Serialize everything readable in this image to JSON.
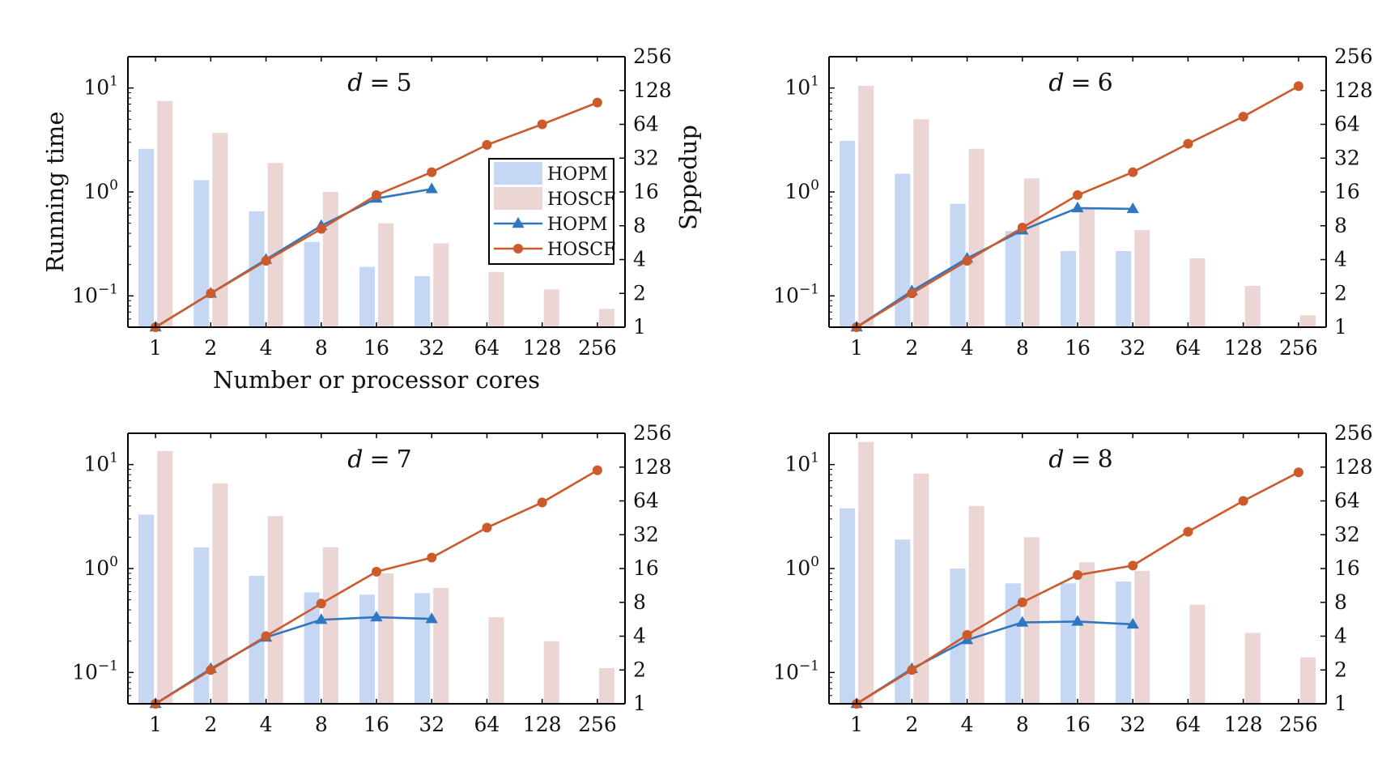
{
  "figure": {
    "ylabel_left": "Running time",
    "ylabel_right": "Sppedup",
    "xlabel": "Number or processor cores"
  },
  "legend": [
    {
      "label": "HOPM",
      "kind": "bar",
      "color": "#c5d7f2"
    },
    {
      "label": "HOSCF",
      "kind": "bar",
      "color": "#ecd5d5"
    },
    {
      "label": "HOPM",
      "kind": "line",
      "marker": "triangle",
      "color": "#2f77c1"
    },
    {
      "label": "HOSCF",
      "kind": "line",
      "marker": "circle",
      "color": "#cc5a2b"
    }
  ],
  "colors": {
    "hopm_bar": "#c5d7f2",
    "hoscf_bar": "#ecd5d5",
    "hopm_line": "#2f77c1",
    "hoscf_line": "#cc5a2b"
  },
  "chart_data": [
    {
      "type": "bar+line",
      "title_var": "d",
      "title_eq": "=",
      "title_num": "5",
      "categories": [
        "1",
        "2",
        "4",
        "8",
        "16",
        "32",
        "64",
        "128",
        "256"
      ],
      "left_axis": {
        "scale": "log10",
        "ylim": [
          0.05,
          20
        ],
        "ticks": [
          {
            "base": "10",
            "exp": "1",
            "value": 10
          },
          {
            "base": "10",
            "exp": "0",
            "value": 1
          },
          {
            "base": "10",
            "exp": "−1",
            "value": 0.1
          }
        ]
      },
      "right_axis": {
        "scale": "log2",
        "ylim": [
          1,
          256
        ],
        "ticks": [
          "1",
          "2",
          "4",
          "8",
          "16",
          "32",
          "64",
          "128",
          "256"
        ]
      },
      "series": [
        {
          "name": "HOPM",
          "kind": "bar",
          "axis": "left",
          "values": [
            2.6,
            1.3,
            0.65,
            0.33,
            0.19,
            0.155,
            null,
            null,
            null
          ]
        },
        {
          "name": "HOSCF",
          "kind": "bar",
          "axis": "left",
          "values": [
            7.5,
            3.7,
            1.9,
            1.0,
            0.5,
            0.32,
            0.17,
            0.115,
            0.075
          ]
        },
        {
          "name": "HOPM",
          "kind": "line",
          "axis": "right",
          "values": [
            1,
            2,
            4,
            8,
            14,
            17,
            null,
            null,
            null
          ]
        },
        {
          "name": "HOSCF",
          "kind": "line",
          "axis": "right",
          "values": [
            1,
            2,
            3.9,
            7.5,
            15,
            24,
            42,
            64,
            100
          ]
        }
      ],
      "show_legend": true,
      "show_xlabel": true,
      "show_ylabels": true
    },
    {
      "type": "bar+line",
      "title_var": "d",
      "title_eq": "=",
      "title_num": "6",
      "categories": [
        "1",
        "2",
        "4",
        "8",
        "16",
        "32",
        "64",
        "128",
        "256"
      ],
      "left_axis": {
        "scale": "log10",
        "ylim": [
          0.05,
          20
        ],
        "ticks": [
          {
            "base": "10",
            "exp": "1",
            "value": 10
          },
          {
            "base": "10",
            "exp": "0",
            "value": 1
          },
          {
            "base": "10",
            "exp": "−1",
            "value": 0.1
          }
        ]
      },
      "right_axis": {
        "scale": "log2",
        "ylim": [
          1,
          256
        ],
        "ticks": [
          "1",
          "2",
          "4",
          "8",
          "16",
          "32",
          "64",
          "128",
          "256"
        ]
      },
      "series": [
        {
          "name": "HOPM",
          "kind": "bar",
          "axis": "left",
          "values": [
            3.1,
            1.5,
            0.77,
            0.42,
            0.27,
            0.27,
            null,
            null,
            null
          ]
        },
        {
          "name": "HOSCF",
          "kind": "bar",
          "axis": "left",
          "values": [
            10.5,
            5.0,
            2.6,
            1.35,
            0.7,
            0.43,
            0.23,
            0.125,
            0.065
          ]
        },
        {
          "name": "HOPM",
          "kind": "line",
          "axis": "right",
          "values": [
            1,
            2.1,
            4.1,
            7.3,
            11.5,
            11.3,
            null,
            null,
            null
          ]
        },
        {
          "name": "HOSCF",
          "kind": "line",
          "axis": "right",
          "values": [
            1,
            2,
            3.9,
            7.7,
            15,
            24,
            43,
            75,
            140
          ]
        }
      ],
      "show_legend": false,
      "show_xlabel": false,
      "show_ylabels": false
    },
    {
      "type": "bar+line",
      "title_var": "d",
      "title_eq": "=",
      "title_num": "7",
      "categories": [
        "1",
        "2",
        "4",
        "8",
        "16",
        "32",
        "64",
        "128",
        "256"
      ],
      "left_axis": {
        "scale": "log10",
        "ylim": [
          0.05,
          20
        ],
        "ticks": [
          {
            "base": "10",
            "exp": "1",
            "value": 10
          },
          {
            "base": "10",
            "exp": "0",
            "value": 1
          },
          {
            "base": "10",
            "exp": "−1",
            "value": 0.1
          }
        ]
      },
      "right_axis": {
        "scale": "log2",
        "ylim": [
          1,
          256
        ],
        "ticks": [
          "1",
          "2",
          "4",
          "8",
          "16",
          "32",
          "64",
          "128",
          "256"
        ]
      },
      "series": [
        {
          "name": "HOPM",
          "kind": "bar",
          "axis": "left",
          "values": [
            3.3,
            1.6,
            0.85,
            0.59,
            0.56,
            0.58,
            null,
            null,
            null
          ]
        },
        {
          "name": "HOSCF",
          "kind": "bar",
          "axis": "left",
          "values": [
            13.5,
            6.6,
            3.2,
            1.6,
            0.9,
            0.65,
            0.34,
            0.2,
            0.11
          ]
        },
        {
          "name": "HOPM",
          "kind": "line",
          "axis": "right",
          "values": [
            1,
            2.05,
            3.9,
            5.6,
            5.9,
            5.7,
            null,
            null,
            null
          ]
        },
        {
          "name": "HOSCF",
          "kind": "line",
          "axis": "right",
          "values": [
            1,
            2,
            4,
            7.8,
            15,
            20,
            37,
            62,
            120
          ]
        }
      ],
      "show_legend": false,
      "show_xlabel": false,
      "show_ylabels": false
    },
    {
      "type": "bar+line",
      "title_var": "d",
      "title_eq": "=",
      "title_num": "8",
      "categories": [
        "1",
        "2",
        "4",
        "8",
        "16",
        "32",
        "64",
        "128",
        "256"
      ],
      "left_axis": {
        "scale": "log10",
        "ylim": [
          0.05,
          20
        ],
        "ticks": [
          {
            "base": "10",
            "exp": "1",
            "value": 10
          },
          {
            "base": "10",
            "exp": "0",
            "value": 1
          },
          {
            "base": "10",
            "exp": "−1",
            "value": 0.1
          }
        ]
      },
      "right_axis": {
        "scale": "log2",
        "ylim": [
          1,
          256
        ],
        "ticks": [
          "1",
          "2",
          "4",
          "8",
          "16",
          "32",
          "64",
          "128",
          "256"
        ]
      },
      "series": [
        {
          "name": "HOPM",
          "kind": "bar",
          "axis": "left",
          "values": [
            3.8,
            1.9,
            1.0,
            0.72,
            0.72,
            0.75,
            null,
            null,
            null
          ]
        },
        {
          "name": "HOSCF",
          "kind": "bar",
          "axis": "left",
          "values": [
            16.5,
            8.2,
            4.0,
            2.0,
            1.15,
            0.95,
            0.45,
            0.24,
            0.14
          ]
        },
        {
          "name": "HOPM",
          "kind": "line",
          "axis": "right",
          "values": [
            1,
            2.05,
            3.7,
            5.3,
            5.4,
            5.1,
            null,
            null,
            null
          ]
        },
        {
          "name": "HOSCF",
          "kind": "line",
          "axis": "right",
          "values": [
            1,
            2,
            4.1,
            8,
            14,
            17,
            34,
            64,
            115
          ]
        }
      ],
      "show_legend": false,
      "show_xlabel": false,
      "show_ylabels": false
    }
  ]
}
